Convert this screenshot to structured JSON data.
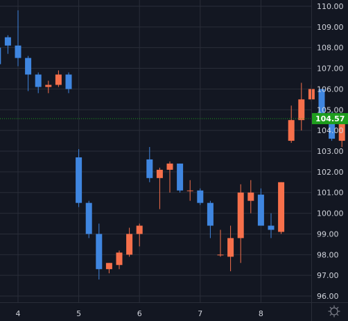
{
  "colors": {
    "background": "#131722",
    "grid": "#2a2e39",
    "up": "#f7704b",
    "down": "#3f86e0",
    "axis_text": "#d1d4dc",
    "last_price_bg": "#1e9e1e",
    "last_price_line": "#1e9e1e"
  },
  "axis_controls": {
    "settings_icon": "gear-icon"
  },
  "chart_data": {
    "type": "candlestick",
    "x_ticks": [
      "4",
      "5",
      "6",
      "7",
      "8"
    ],
    "x_tick_index": [
      2,
      8,
      14,
      20,
      26
    ],
    "y_ticks": [
      "96.00",
      "97.00",
      "98.00",
      "99.00",
      "100.00",
      "101.00",
      "102.00",
      "103.00",
      "104.00",
      "105.00",
      "106.00",
      "107.00",
      "108.00",
      "109.00",
      "110.00"
    ],
    "ylim": [
      95.7,
      110.3
    ],
    "grid": true,
    "last_price": "104.57",
    "candles": [
      {
        "o": 108.0,
        "h": 108.3,
        "l": 106.9,
        "c": 107.2
      },
      {
        "o": 108.5,
        "h": 108.6,
        "l": 107.7,
        "c": 108.1
      },
      {
        "o": 108.1,
        "h": 109.8,
        "l": 107.1,
        "c": 107.5
      },
      {
        "o": 107.5,
        "h": 107.6,
        "l": 105.9,
        "c": 106.7
      },
      {
        "o": 106.7,
        "h": 106.8,
        "l": 105.8,
        "c": 106.1
      },
      {
        "o": 106.1,
        "h": 106.4,
        "l": 105.8,
        "c": 106.2
      },
      {
        "o": 106.2,
        "h": 106.9,
        "l": 106.1,
        "c": 106.7
      },
      {
        "o": 106.7,
        "h": 106.8,
        "l": 105.8,
        "c": 106.0
      },
      {
        "o": 102.7,
        "h": 103.1,
        "l": 100.3,
        "c": 100.5
      },
      {
        "o": 100.5,
        "h": 100.6,
        "l": 98.8,
        "c": 99.0
      },
      {
        "o": 99.0,
        "h": 99.5,
        "l": 96.8,
        "c": 97.3
      },
      {
        "o": 97.3,
        "h": 97.6,
        "l": 97.1,
        "c": 97.6
      },
      {
        "o": 97.5,
        "h": 98.2,
        "l": 97.3,
        "c": 98.1
      },
      {
        "o": 98.0,
        "h": 99.3,
        "l": 97.9,
        "c": 99.0
      },
      {
        "o": 99.0,
        "h": 99.5,
        "l": 98.4,
        "c": 99.4
      },
      {
        "o": 102.6,
        "h": 103.2,
        "l": 101.5,
        "c": 101.7
      },
      {
        "o": 101.7,
        "h": 102.2,
        "l": 100.2,
        "c": 102.1
      },
      {
        "o": 102.1,
        "h": 102.5,
        "l": 101.0,
        "c": 102.4
      },
      {
        "o": 102.4,
        "h": 102.4,
        "l": 101.0,
        "c": 101.1
      },
      {
        "o": 101.1,
        "h": 101.6,
        "l": 100.6,
        "c": 101.1
      },
      {
        "o": 101.1,
        "h": 101.2,
        "l": 100.4,
        "c": 100.5
      },
      {
        "o": 100.5,
        "h": 100.6,
        "l": 98.8,
        "c": 99.4
      },
      {
        "o": 98.0,
        "h": 99.2,
        "l": 97.9,
        "c": 98.0
      },
      {
        "o": 97.9,
        "h": 99.4,
        "l": 97.2,
        "c": 98.8
      },
      {
        "o": 98.8,
        "h": 101.4,
        "l": 97.6,
        "c": 101.0
      },
      {
        "o": 100.6,
        "h": 101.6,
        "l": 100.0,
        "c": 101.0
      },
      {
        "o": 100.9,
        "h": 101.2,
        "l": 99.4,
        "c": 99.4
      },
      {
        "o": 99.4,
        "h": 100.0,
        "l": 98.8,
        "c": 99.2
      },
      {
        "o": 99.1,
        "h": 101.5,
        "l": 99.0,
        "c": 101.5
      },
      {
        "o": 103.5,
        "h": 105.2,
        "l": 103.4,
        "c": 104.5
      },
      {
        "o": 104.5,
        "h": 106.3,
        "l": 104.0,
        "c": 105.5
      },
      {
        "o": 105.5,
        "h": 106.2,
        "l": 105.4,
        "c": 106.0
      },
      {
        "o": 106.0,
        "h": 106.0,
        "l": 104.4,
        "c": 104.8
      },
      {
        "o": 104.8,
        "h": 104.9,
        "l": 103.5,
        "c": 103.6
      },
      {
        "o": 103.5,
        "h": 104.5,
        "l": 103.2,
        "c": 104.4
      },
      {
        "o": 104.4,
        "h": 105.0,
        "l": 104.3,
        "c": 104.6
      }
    ]
  }
}
